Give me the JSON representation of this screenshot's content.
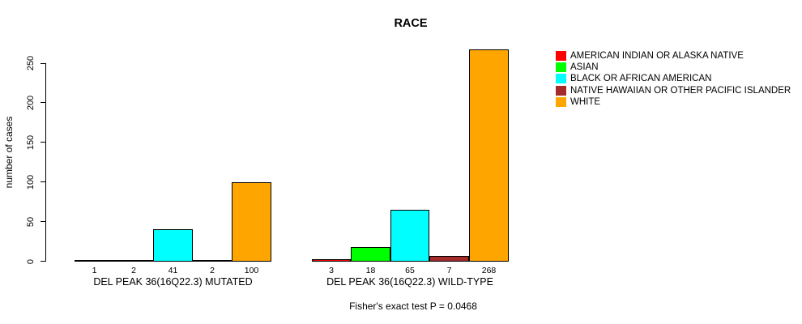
{
  "title": "RACE",
  "ylabel": "number of cases",
  "footer": "Fisher's exact test P = 0.0468",
  "legend": [
    {
      "label": "AMERICAN INDIAN OR ALASKA NATIVE",
      "color": "#ff0000"
    },
    {
      "label": "ASIAN",
      "color": "#00ff00"
    },
    {
      "label": "BLACK OR AFRICAN AMERICAN",
      "color": "#00ffff"
    },
    {
      "label": "NATIVE HAWAIIAN OR OTHER PACIFIC ISLANDER",
      "color": "#a52a2a"
    },
    {
      "label": "WHITE",
      "color": "#ffa500"
    }
  ],
  "chart_data": {
    "type": "bar",
    "title": "RACE",
    "xlabel": "",
    "ylabel": "number of cases",
    "ylim": [
      0,
      250
    ],
    "yticks": [
      0,
      50,
      100,
      150,
      200,
      250
    ],
    "grid": false,
    "legend_position": "right",
    "categories": [
      "DEL PEAK 36(16Q22.3) MUTATED",
      "DEL PEAK 36(16Q22.3) WILD-TYPE"
    ],
    "series": [
      {
        "name": "AMERICAN INDIAN OR ALASKA NATIVE",
        "color": "#ff0000",
        "values": [
          1,
          3
        ]
      },
      {
        "name": "ASIAN",
        "color": "#00ff00",
        "values": [
          2,
          18
        ]
      },
      {
        "name": "BLACK OR AFRICAN AMERICAN",
        "color": "#00ffff",
        "values": [
          41,
          65
        ]
      },
      {
        "name": "NATIVE HAWAIIAN OR OTHER PACIFIC ISLANDER",
        "color": "#a52a2a",
        "values": [
          2,
          7
        ]
      },
      {
        "name": "WHITE",
        "color": "#ffa500",
        "values": [
          100,
          268
        ]
      }
    ],
    "annotation": "Fisher's exact test P = 0.0468"
  }
}
